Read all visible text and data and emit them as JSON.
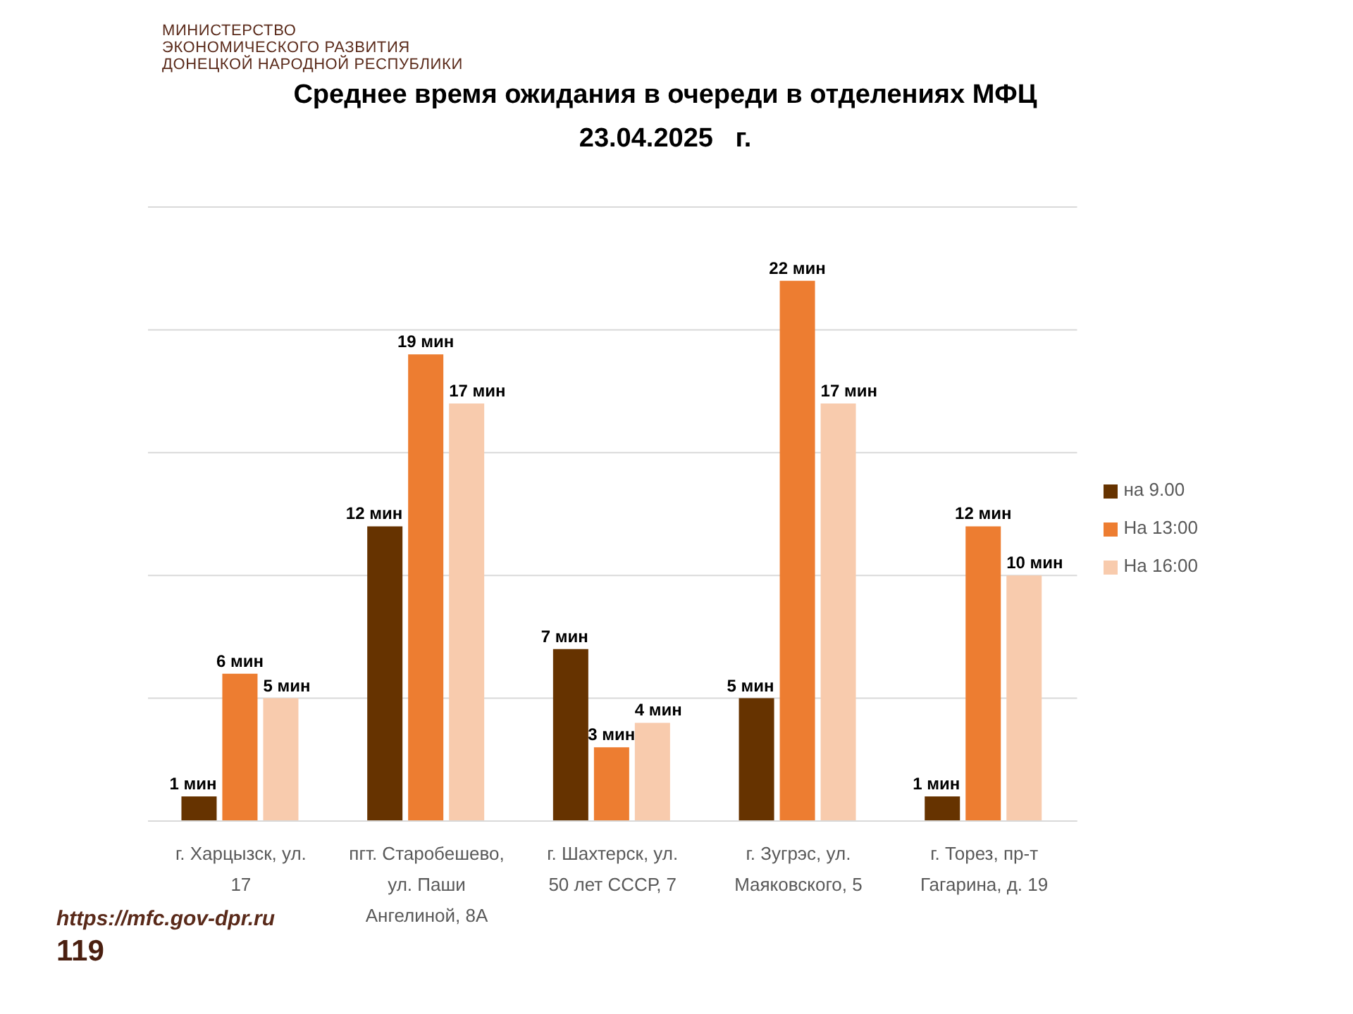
{
  "chart_data": {
    "type": "bar",
    "title": "Среднее время ожидания в очереди в отделениях МФЦ\n23.04.2025   г.",
    "annotations": [
      "МИНИСТЕРСТВО\nЭКОНОМИЧЕСКОГО РАЗВИТИЯ\nДОНЕЦКОЙ НАРОДНОЙ РЕСПУБЛИКИ",
      "https://mfc.gov-dpr.ru",
      "119"
    ],
    "categories": [
      "г. Харцызск, ул. 17",
      "пгт. Старобешево, ул. Паши Ангелиной, 8А",
      "г. Шахтерск, ул. 50 лет СССР, 7",
      "г. Зугрэс, ул. Маяковского, 5",
      "г. Торез, пр-т Гагарина, д. 19"
    ],
    "series": [
      {
        "name": "на 9.00",
        "color": "#663300",
        "values": [
          1,
          12,
          7,
          5,
          1
        ],
        "value_labels": [
          "1 мин",
          "12 мин",
          "7 мин",
          "5 мин",
          "1 мин"
        ]
      },
      {
        "name": "На 13:00",
        "color": "#ed7d31",
        "values": [
          6,
          19,
          3,
          22,
          12
        ],
        "value_labels": [
          "6 мин",
          "19 мин",
          "3 мин",
          "22 мин",
          "12 мин"
        ]
      },
      {
        "name": "На 16:00",
        "color": "#f8cbad",
        "values": [
          5,
          17,
          4,
          17,
          10
        ],
        "value_labels": [
          "5 мин",
          "17 мин",
          "4 мин",
          "17 мин",
          "10 мин"
        ]
      }
    ],
    "grid": "y",
    "legend": "right",
    "tick_labels": "x"
  }
}
